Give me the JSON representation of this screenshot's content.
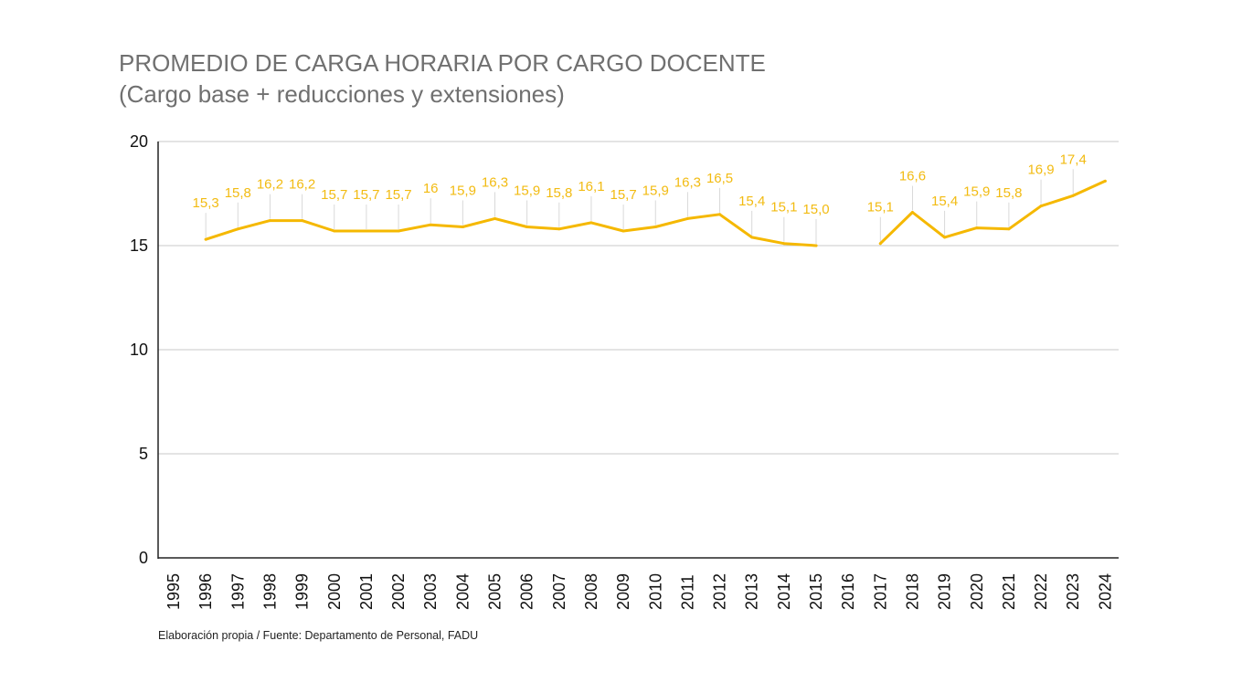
{
  "chart_data": {
    "type": "line",
    "title": "PROMEDIO DE CARGA HORARIA POR CARGO DOCENTE",
    "subtitle": "(Cargo base + reducciones y extensiones)",
    "categories": [
      "1995",
      "1996",
      "1997",
      "1998",
      "1999",
      "2000",
      "2001",
      "2002",
      "2003",
      "2004",
      "2005",
      "2006",
      "2007",
      "2008",
      "2009",
      "2010",
      "2011",
      "2012",
      "2013",
      "2014",
      "2015",
      "2016",
      "2017",
      "2018",
      "2019",
      "2020",
      "2021",
      "2022",
      "2023",
      "2024"
    ],
    "series": [
      {
        "values": [
          null,
          15.3,
          15.8,
          16.2,
          16.2,
          15.7,
          15.7,
          15.7,
          16.0,
          15.9,
          16.3,
          15.9,
          15.8,
          16.1,
          15.7,
          15.9,
          16.3,
          16.5,
          15.4,
          15.1,
          15.0,
          null,
          15.1,
          16.6,
          15.4,
          15.85,
          15.8,
          16.9,
          17.4,
          18.1
        ],
        "labels": [
          "",
          "15,3",
          "15,8",
          "16,2",
          "16,2",
          "15,7",
          "15,7",
          "15,7",
          "16",
          "15,9",
          "16,3",
          "15,9",
          "15,8",
          "16,1",
          "15,7",
          "15,9",
          "16,3",
          "16,5",
          "15,4",
          "15,1",
          "15,0",
          "",
          "15,1",
          "16,6",
          "15,4",
          "15,9",
          "15,8",
          "16,9",
          "17,4",
          ""
        ]
      }
    ],
    "y_ticks": [
      "0",
      "5",
      "10",
      "15",
      "20"
    ],
    "ylim": [
      0,
      20
    ],
    "xlabel": "",
    "ylabel": "",
    "grid": true,
    "legend": "none",
    "line_color": "#F5B800",
    "label_color": "#F2BB12",
    "grid_color": "#C8C8C8"
  },
  "source": "Elaboración propia / Fuente: Departamento de Personal, FADU"
}
